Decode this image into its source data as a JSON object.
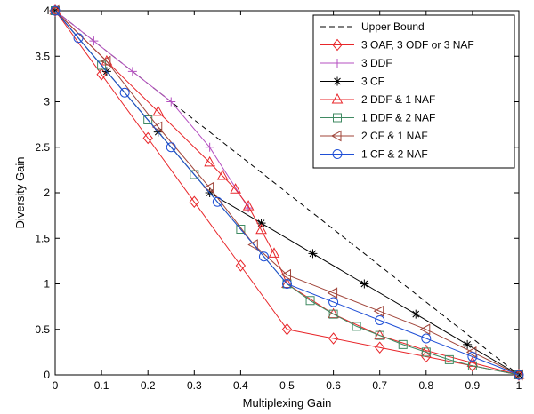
{
  "chart_data": {
    "type": "line",
    "xlabel": "Multiplexing Gain",
    "ylabel": "Diversity Gain",
    "xlim": [
      0,
      1
    ],
    "ylim": [
      0,
      4
    ],
    "xticks": [
      "0",
      "0.1",
      "0.2",
      "0.3",
      "0.4",
      "0.5",
      "0.6",
      "0.7",
      "0.8",
      "0.9",
      "1"
    ],
    "yticks": [
      "0",
      "0.5",
      "1",
      "1.5",
      "2",
      "2.5",
      "3",
      "3.5",
      "4"
    ],
    "grid": false,
    "legend_position": "top-right",
    "series": [
      {
        "name": "Upper Bound",
        "color": "#000000",
        "dash": "dashed",
        "marker": "none",
        "x": [
          0,
          0.25,
          1
        ],
        "y": [
          4,
          3,
          0
        ]
      },
      {
        "name": "3 OAF, 3 ODF or 3 NAF",
        "color": "#e8262a",
        "dash": "solid",
        "marker": "diamond",
        "x": [
          0,
          0.1,
          0.2,
          0.3,
          0.4,
          0.5,
          0.6,
          0.7,
          0.8,
          0.9,
          1
        ],
        "y": [
          4,
          3.3,
          2.6,
          1.9,
          1.2,
          0.5,
          0.4,
          0.3,
          0.2,
          0.1,
          0
        ]
      },
      {
        "name": "3 DDF",
        "color": "#b44fc0",
        "dash": "solid",
        "marker": "plus",
        "x": [
          0,
          0.0833,
          0.1667,
          0.25,
          0.3333,
          0.4167
        ],
        "y": [
          4,
          3.667,
          3.333,
          3,
          2.5,
          1.833
        ]
      },
      {
        "name": "3 CF",
        "color": "#000000",
        "dash": "solid",
        "marker": "asterisk",
        "x": [
          0,
          0.1111,
          0.2222,
          0.3333,
          0.4444,
          0.5556,
          0.6667,
          0.7778,
          0.8889,
          1
        ],
        "y": [
          4,
          3.333,
          2.667,
          2,
          1.667,
          1.333,
          1,
          0.667,
          0.333,
          0
        ]
      },
      {
        "name": "2 DDF & 1 NAF",
        "color": "#e8262a",
        "dash": "solid",
        "marker": "triangle",
        "x": [
          0,
          0.1111,
          0.2222,
          0.3333,
          0.3611,
          0.3889,
          0.4167,
          0.4444,
          0.4722,
          0.5,
          0.6,
          0.7,
          0.8,
          0.9,
          1
        ],
        "y": [
          4,
          3.444,
          2.889,
          2.333,
          2.185,
          2.037,
          1.852,
          1.593,
          1.333,
          1,
          0.667,
          0.433,
          0.267,
          0.133,
          0
        ]
      },
      {
        "name": "1 DDF & 2 NAF",
        "color": "#3f8a62",
        "dash": "solid",
        "marker": "square",
        "x": [
          0,
          0.1,
          0.2,
          0.3,
          0.4,
          0.5,
          0.55,
          0.6,
          0.65,
          0.7,
          0.75,
          0.8,
          0.85,
          0.9,
          1
        ],
        "y": [
          4,
          3.4,
          2.8,
          2.2,
          1.6,
          1,
          0.817,
          0.667,
          0.533,
          0.433,
          0.333,
          0.25,
          0.167,
          0.1,
          0
        ]
      },
      {
        "name": "2 CF & 1 NAF",
        "color": "#a0453a",
        "dash": "solid",
        "marker": "triangle-left",
        "x": [
          0,
          0.1111,
          0.2222,
          0.3333,
          0.4286,
          0.5,
          0.6,
          0.7,
          0.8,
          0.9,
          1
        ],
        "y": [
          4,
          3.444,
          2.722,
          2.056,
          1.429,
          1.1,
          0.9,
          0.7,
          0.5,
          0.25,
          0
        ]
      },
      {
        "name": "1 CF & 2 NAF",
        "color": "#1f4fd6",
        "dash": "solid",
        "marker": "circle",
        "x": [
          0,
          0.05,
          0.15,
          0.25,
          0.35,
          0.45,
          0.5,
          0.6,
          0.7,
          0.8,
          0.9,
          1
        ],
        "y": [
          4,
          3.7,
          3.1,
          2.5,
          1.9,
          1.3,
          1,
          0.8,
          0.6,
          0.4,
          0.2,
          0
        ]
      }
    ]
  }
}
